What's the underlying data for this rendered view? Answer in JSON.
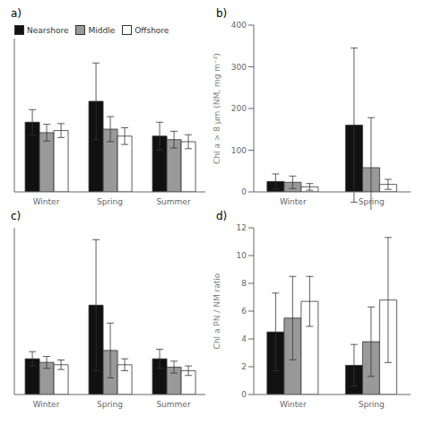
{
  "chart_data": [
    {
      "type": "bar",
      "title": "a)",
      "categories": [
        "Winter",
        "Spring",
        "Summer"
      ],
      "series": [
        {
          "name": "Nearshore",
          "color": "#111111",
          "values": [
            100,
            130,
            80
          ],
          "errors": [
            18,
            55,
            20
          ]
        },
        {
          "name": "Middle",
          "color": "#999999",
          "values": [
            85,
            90,
            75
          ],
          "errors": [
            12,
            18,
            12
          ]
        },
        {
          "name": "Offshore",
          "color": "#ffffff",
          "values": [
            88,
            80,
            72
          ],
          "errors": [
            10,
            12,
            10
          ]
        }
      ],
      "ylim": [
        0,
        220
      ],
      "tick_labels": "x",
      "grid": false,
      "legend": "upper left"
    },
    {
      "type": "bar",
      "title": "b)",
      "categories": [
        "Winter",
        "Spring"
      ],
      "series": [
        {
          "name": "Nearshore",
          "color": "#111111",
          "values": [
            25,
            160
          ],
          "errors": [
            18,
            185
          ]
        },
        {
          "name": "Middle",
          "color": "#999999",
          "values": [
            23,
            58
          ],
          "errors": [
            15,
            120
          ]
        },
        {
          "name": "Offshore",
          "color": "#ffffff",
          "values": [
            12,
            18
          ],
          "errors": [
            8,
            12
          ]
        }
      ],
      "ylabel": "Chl a > 8 μm (NM, mg m⁻²)",
      "ylim": [
        0,
        400
      ],
      "yticks": [
        0,
        100,
        200,
        300,
        400
      ],
      "grid": false
    },
    {
      "type": "bar",
      "title": "c)",
      "categories": [
        "Winter",
        "Spring",
        "Summer"
      ],
      "series": [
        {
          "name": "Nearshore",
          "color": "#111111",
          "values": [
            3.0,
            7.5,
            3.0
          ],
          "errors": [
            0.6,
            5.5,
            0.8
          ]
        },
        {
          "name": "Middle",
          "color": "#999999",
          "values": [
            2.7,
            3.7,
            2.3
          ],
          "errors": [
            0.5,
            2.3,
            0.5
          ]
        },
        {
          "name": "Offshore",
          "color": "#ffffff",
          "values": [
            2.5,
            2.5,
            2.0
          ],
          "errors": [
            0.4,
            0.5,
            0.4
          ]
        }
      ],
      "ylim": [
        0,
        14
      ],
      "tick_labels": "x",
      "grid": false
    },
    {
      "type": "bar",
      "title": "d)",
      "categories": [
        "Winter",
        "Spring"
      ],
      "series": [
        {
          "name": "Nearshore",
          "color": "#111111",
          "values": [
            4.5,
            2.1
          ],
          "errors": [
            2.8,
            1.5
          ]
        },
        {
          "name": "Middle",
          "color": "#999999",
          "values": [
            5.5,
            3.8
          ],
          "errors": [
            3.0,
            2.5
          ]
        },
        {
          "name": "Offshore",
          "color": "#ffffff",
          "values": [
            6.7,
            6.8
          ],
          "errors": [
            1.8,
            4.5
          ]
        }
      ],
      "ylabel": "Chl a PN / NM ratio",
      "ylim": [
        0,
        12
      ],
      "yticks": [
        0,
        2,
        4,
        6,
        8,
        10,
        12
      ],
      "grid": false
    }
  ]
}
